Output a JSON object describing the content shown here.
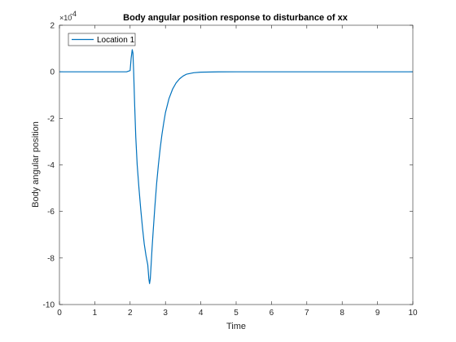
{
  "chart_data": {
    "type": "line",
    "title": "Body angular position response to disturbance of xx",
    "xlabel": "Time",
    "ylabel": "Body angular position",
    "xlim": [
      0,
      10
    ],
    "ylim": [
      -10,
      2
    ],
    "y_scale_exponent": "-4",
    "y_scale_multiplier_label": "×10",
    "xticks": [
      "0",
      "1",
      "2",
      "3",
      "4",
      "5",
      "6",
      "7",
      "8",
      "9",
      "10"
    ],
    "yticks": [
      "-10",
      "-8",
      "-6",
      "-4",
      "-2",
      "0",
      "2"
    ],
    "grid": false,
    "legend_position": "top-left",
    "series": [
      {
        "name": "Location 1",
        "color": "#0072BD",
        "x": [
          0,
          1.9,
          2.0,
          2.03,
          2.06,
          2.08,
          2.1,
          2.13,
          2.16,
          2.2,
          2.25,
          2.3,
          2.35,
          2.4,
          2.45,
          2.5,
          2.53,
          2.55,
          2.57,
          2.59,
          2.62,
          2.65,
          2.7,
          2.75,
          2.8,
          2.85,
          2.9,
          2.95,
          3.0,
          3.1,
          3.2,
          3.3,
          3.4,
          3.5,
          3.6,
          3.8,
          4.0,
          4.5,
          5,
          6,
          7,
          8,
          9,
          10
        ],
        "y": [
          0,
          0,
          0.05,
          0.6,
          0.95,
          0.8,
          0.0,
          -1.5,
          -2.8,
          -4.0,
          -5.0,
          -5.9,
          -6.7,
          -7.4,
          -7.9,
          -8.3,
          -8.9,
          -9.1,
          -8.9,
          -8.4,
          -7.6,
          -6.9,
          -5.8,
          -4.8,
          -4.0,
          -3.3,
          -2.7,
          -2.2,
          -1.75,
          -1.15,
          -0.75,
          -0.48,
          -0.3,
          -0.18,
          -0.1,
          -0.04,
          -0.015,
          -0.003,
          0,
          0,
          0,
          0,
          0,
          0
        ]
      }
    ]
  }
}
